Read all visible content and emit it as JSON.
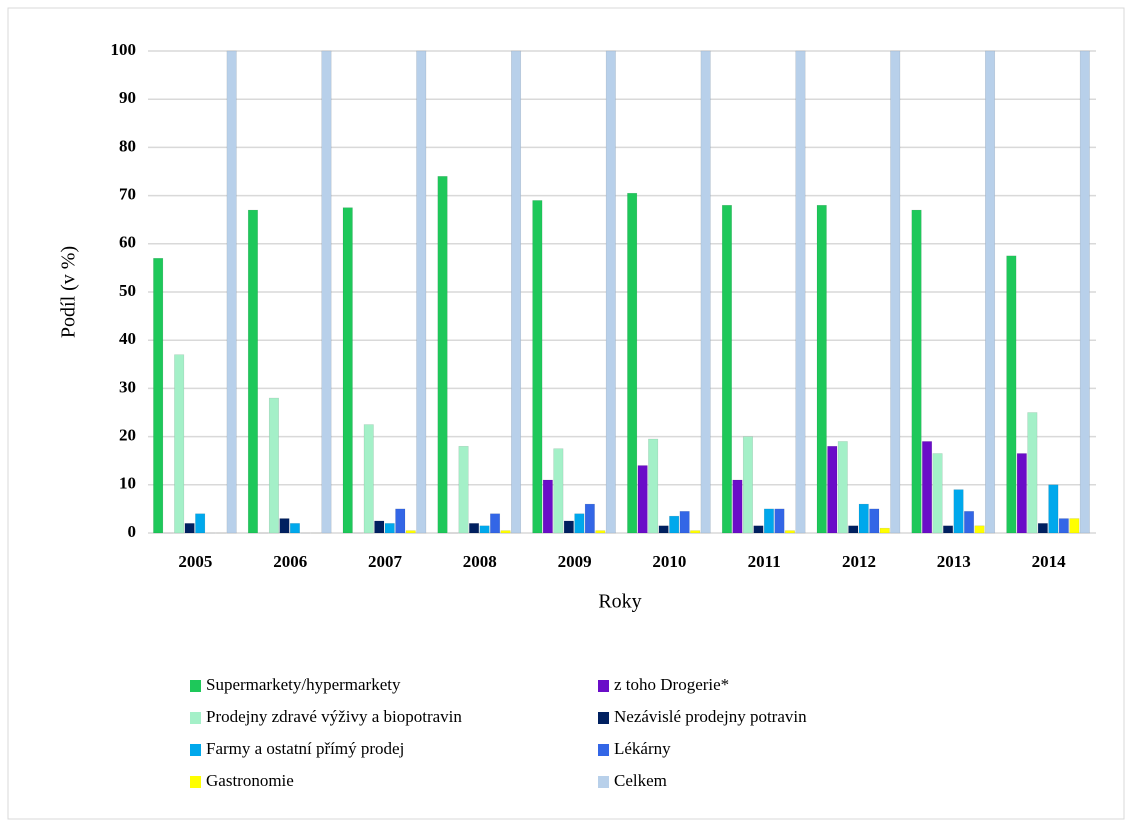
{
  "chart_data": {
    "type": "bar",
    "xlabel": "Roky",
    "ylabel": "Podíl (v %)",
    "categories": [
      "2005",
      "2006",
      "2007",
      "2008",
      "2009",
      "2010",
      "2011",
      "2012",
      "2013",
      "2014"
    ],
    "series": [
      {
        "name": "Supermarkety/hypermarkety",
        "color": "#1ec85a",
        "values": [
          57,
          67,
          67.5,
          74,
          69,
          70.5,
          68,
          68,
          67,
          57.5
        ]
      },
      {
        "name": "z toho Drogerie*",
        "color": "#6a0dc8",
        "values": [
          0,
          0,
          0,
          0,
          11,
          14,
          11,
          18,
          19,
          16.5
        ]
      },
      {
        "name": "Prodejny zdravé výživy a biopotravin",
        "color": "#a4f0c8",
        "values": [
          37,
          28,
          22.5,
          18,
          17.5,
          19.5,
          20,
          19,
          16.5,
          25
        ]
      },
      {
        "name": "Nezávislé prodejny potravin",
        "color": "#002060",
        "values": [
          2,
          3,
          2.5,
          2,
          2.5,
          1.5,
          1.5,
          1.5,
          1.5,
          2
        ]
      },
      {
        "name": "Farmy a ostatní přímý prodej",
        "color": "#00a8ec",
        "values": [
          4,
          2,
          2,
          1.5,
          4,
          3.5,
          5,
          6,
          9,
          10
        ]
      },
      {
        "name": "Lékárny",
        "color": "#3366e6",
        "values": [
          0,
          0,
          5,
          4,
          6,
          4.5,
          5,
          5,
          4.5,
          3
        ]
      },
      {
        "name": "Gastronomie",
        "color": "#ffff00",
        "values": [
          0,
          0,
          0.5,
          0.5,
          0.5,
          0.5,
          0.5,
          1,
          1.5,
          3
        ]
      },
      {
        "name": "Celkem",
        "color": "#b8d0ea",
        "values": [
          100,
          100,
          100,
          100,
          100,
          100,
          100,
          100,
          100,
          100
        ]
      }
    ],
    "ylim": [
      0,
      100
    ],
    "yticks": [
      0,
      10,
      20,
      30,
      40,
      50,
      60,
      70,
      80,
      90,
      100
    ],
    "grid": true,
    "legend": "bottom"
  }
}
